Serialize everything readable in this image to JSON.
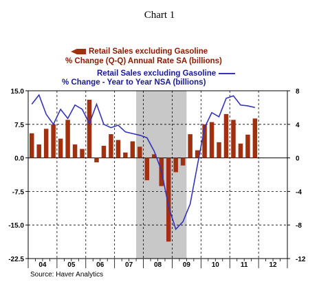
{
  "title": "Chart 1",
  "legend": {
    "bar_line1": "Retail Sales excluding Gasoline",
    "bar_line2": "% Change (Q-Q)  Annual Rate   SA (billions)",
    "line_line1": "Retail Sales excluding Gasoline",
    "line_line2": "% Change - Year to Year  NSA   (billions)"
  },
  "source": "Source: Haver Analytics",
  "chart_data": {
    "type": "bar+line",
    "title": "Chart 1",
    "x_categories": [
      "04",
      "05",
      "06",
      "07",
      "08",
      "09",
      "10",
      "11",
      "12"
    ],
    "recession_shading": {
      "start": "2007Q4",
      "end": "2009Q2"
    },
    "left_axis": {
      "ylim": [
        -22.5,
        15.0
      ],
      "ticks": [
        "15.0",
        "7.5",
        "0.0",
        "-7.5",
        "-15.0",
        "-22.5"
      ]
    },
    "right_axis": {
      "ylim": [
        -12,
        8
      ],
      "ticks": [
        "8",
        "4",
        "0",
        "-4",
        "-8",
        "-12"
      ]
    },
    "bars": {
      "name": "Retail Sales excluding Gasoline % Change (Q-Q) Annual Rate SA (billions)",
      "axis": "left",
      "color": "#a0300f",
      "quarters": [
        "2004Q1",
        "2004Q2",
        "2004Q3",
        "2004Q4",
        "2005Q1",
        "2005Q2",
        "2005Q3",
        "2005Q4",
        "2006Q1",
        "2006Q2",
        "2006Q3",
        "2006Q4",
        "2007Q1",
        "2007Q2",
        "2007Q3",
        "2007Q4",
        "2008Q1",
        "2008Q2",
        "2008Q3",
        "2008Q4",
        "2009Q1",
        "2009Q2",
        "2009Q3",
        "2009Q4",
        "2010Q1",
        "2010Q2",
        "2010Q3",
        "2010Q4",
        "2011Q1",
        "2011Q2",
        "2011Q3",
        "2011Q4"
      ],
      "values": [
        5.5,
        3.0,
        6.5,
        7.5,
        4.3,
        8.5,
        3.0,
        2.0,
        13.0,
        -1.0,
        2.7,
        5.3,
        4.0,
        1.2,
        3.7,
        2.5,
        -5.0,
        0.8,
        -6.3,
        -18.7,
        -3.2,
        -1.7,
        5.3,
        1.7,
        7.5,
        8.0,
        3.5,
        9.8,
        8.5,
        3.2,
        5.2,
        8.8
      ]
    },
    "line": {
      "name": "Retail Sales excluding Gasoline % Change - Year to Year NSA (billions)",
      "axis": "right",
      "color": "#3333bb",
      "quarters": [
        "2004Q1",
        "2004Q2",
        "2004Q3",
        "2004Q4",
        "2005Q1",
        "2005Q2",
        "2005Q3",
        "2005Q4",
        "2006Q1",
        "2006Q2",
        "2006Q3",
        "2006Q4",
        "2007Q1",
        "2007Q2",
        "2007Q3",
        "2007Q4",
        "2008Q1",
        "2008Q2",
        "2008Q3",
        "2008Q4",
        "2009Q1",
        "2009Q2",
        "2009Q3",
        "2009Q4",
        "2010Q1",
        "2010Q2",
        "2010Q3",
        "2010Q4",
        "2011Q1",
        "2011Q2",
        "2011Q3",
        "2011Q4"
      ],
      "values": [
        6.4,
        7.5,
        5.2,
        4.0,
        5.8,
        4.7,
        6.3,
        5.8,
        4.1,
        6.4,
        4.0,
        3.6,
        3.9,
        3.1,
        2.9,
        2.7,
        2.4,
        0.8,
        -1.5,
        -5.8,
        -8.5,
        -7.6,
        -5.5,
        -0.9,
        3.6,
        5.4,
        4.9,
        7.1,
        7.4,
        6.3,
        6.2,
        6.0
      ]
    }
  }
}
